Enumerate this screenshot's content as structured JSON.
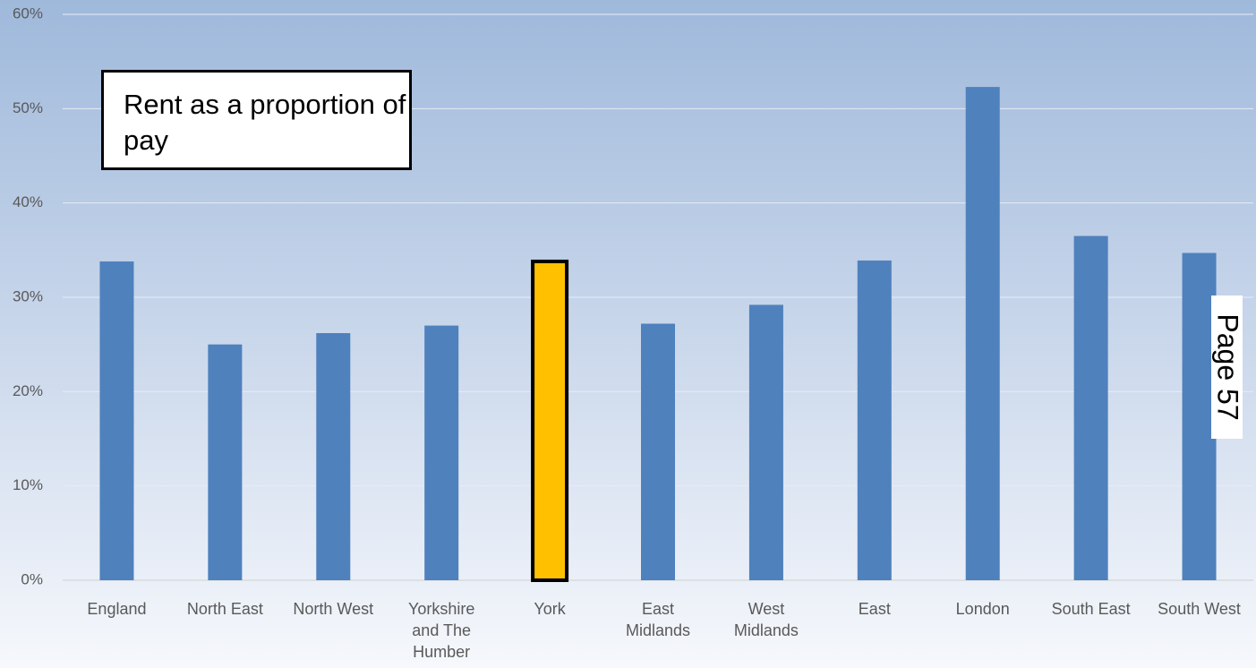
{
  "chart_data": {
    "type": "bar",
    "annotation": "Rent as a proportion of pay",
    "page_label": "Page 57",
    "categories": [
      "England",
      "North East",
      "North West",
      "Yorkshire and The Humber",
      "York",
      "East Midlands",
      "West Midlands",
      "East",
      "London",
      "South East",
      "South West"
    ],
    "values": [
      33.8,
      25.0,
      26.2,
      27.0,
      33.8,
      27.2,
      29.2,
      33.9,
      52.3,
      36.5,
      34.7
    ],
    "colors": [
      "#4f81bd",
      "#4f81bd",
      "#4f81bd",
      "#4f81bd",
      "#ffc000",
      "#4f81bd",
      "#4f81bd",
      "#4f81bd",
      "#4f81bd",
      "#4f81bd",
      "#4f81bd"
    ],
    "edgecolors": [
      null,
      null,
      null,
      null,
      "#000000",
      null,
      null,
      null,
      null,
      null,
      null
    ],
    "ylim": [
      0,
      60
    ],
    "yticks": [
      {
        "value": 0,
        "label": "0%"
      },
      {
        "value": 10,
        "label": "10%"
      },
      {
        "value": 20,
        "label": "20%"
      },
      {
        "value": 30,
        "label": "30%"
      },
      {
        "value": 40,
        "label": "40%"
      },
      {
        "value": 50,
        "label": "50%"
      },
      {
        "value": 60,
        "label": "60%"
      }
    ],
    "grid": true
  }
}
